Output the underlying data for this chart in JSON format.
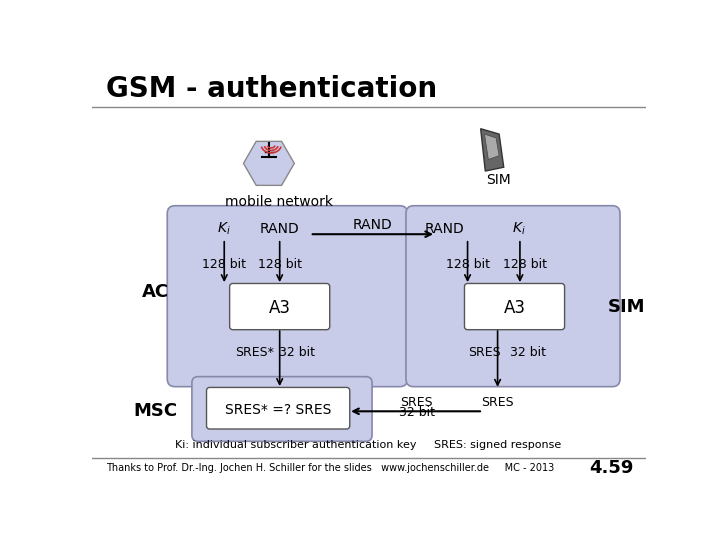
{
  "title": "GSM - authentication",
  "bg_color": "#ffffff",
  "title_color": "#000000",
  "panel_color": "#c8cce8",
  "box_color": "#ffffff",
  "text_color": "#000000",
  "footer_text": "Thanks to Prof. Dr.-Ing. Jochen H. Schiller for the slides   www.jochenschiller.de     MC - 2013",
  "footer_number": "4.59",
  "legend_text": "Ki: individual subscriber authentication key     SRES: signed response"
}
